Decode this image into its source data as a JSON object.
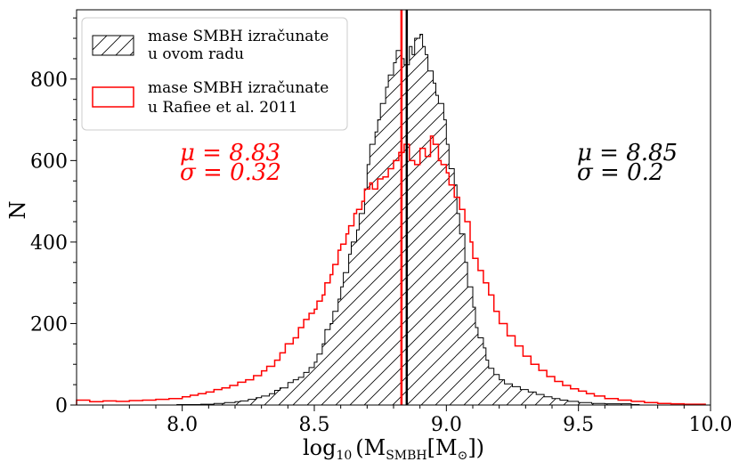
{
  "chart_data": {
    "type": "histogram",
    "xlabel": "log10 (MSMBH[M⊙])",
    "xlabel_parts": {
      "log": "log",
      "log_sub": "10",
      "paren_open": "(M",
      "m_sub": "SMBH",
      "bracket": "[M",
      "sun_sub": "⊙",
      "close": "])"
    },
    "ylabel": "N",
    "xlim": [
      7.6,
      10.0
    ],
    "ylim": [
      0,
      970
    ],
    "xticks": [
      8.0,
      8.5,
      9.0,
      9.5,
      10.0
    ],
    "xtick_labels": [
      "8.0",
      "8.5",
      "9.0",
      "9.5",
      "10.0"
    ],
    "yticks": [
      0,
      200,
      400,
      600,
      800
    ],
    "ytick_labels": [
      "0",
      "200",
      "400",
      "600",
      "800"
    ],
    "legend_position": "top-left",
    "series": [
      {
        "name": "mase SMBH izračunate u ovom radu",
        "legend_lines": [
          "mase SMBH izračunate",
          "u ovom radu"
        ],
        "style": "hatched",
        "color": "#000000",
        "mean_line": 8.85,
        "stats": {
          "mu": "μ = 8.85",
          "sigma": "σ = 0.2"
        },
        "bins": [
          [
            7.98,
            1
          ],
          [
            8.07,
            2
          ],
          [
            8.12,
            4
          ],
          [
            8.16,
            6
          ],
          [
            8.2,
            8
          ],
          [
            8.22,
            10
          ],
          [
            8.25,
            14
          ],
          [
            8.28,
            18
          ],
          [
            8.3,
            22
          ],
          [
            8.33,
            28
          ],
          [
            8.35,
            36
          ],
          [
            8.37,
            42
          ],
          [
            8.4,
            55
          ],
          [
            8.42,
            62
          ],
          [
            8.44,
            68
          ],
          [
            8.46,
            80
          ],
          [
            8.48,
            92
          ],
          [
            8.5,
            105
          ],
          [
            8.51,
            125
          ],
          [
            8.53,
            150
          ],
          [
            8.54,
            185
          ],
          [
            8.56,
            200
          ],
          [
            8.57,
            230
          ],
          [
            8.59,
            260
          ],
          [
            8.6,
            290
          ],
          [
            8.61,
            325
          ],
          [
            8.63,
            370
          ],
          [
            8.64,
            400
          ],
          [
            8.66,
            430
          ],
          [
            8.67,
            470
          ],
          [
            8.69,
            530
          ],
          [
            8.7,
            590
          ],
          [
            8.71,
            640
          ],
          [
            8.73,
            670
          ],
          [
            8.74,
            700
          ],
          [
            8.75,
            740
          ],
          [
            8.77,
            780
          ],
          [
            8.78,
            810
          ],
          [
            8.8,
            840
          ],
          [
            8.81,
            870
          ],
          [
            8.83,
            850
          ],
          [
            8.84,
            835
          ],
          [
            8.86,
            880
          ],
          [
            8.87,
            860
          ],
          [
            8.88,
            900
          ],
          [
            8.9,
            910
          ],
          [
            8.91,
            880
          ],
          [
            8.92,
            860
          ],
          [
            8.93,
            820
          ],
          [
            8.95,
            790
          ],
          [
            8.96,
            760
          ],
          [
            8.97,
            740
          ],
          [
            8.99,
            700
          ],
          [
            9.0,
            640
          ],
          [
            9.01,
            580
          ],
          [
            9.03,
            540
          ],
          [
            9.04,
            470
          ],
          [
            9.05,
            420
          ],
          [
            9.07,
            350
          ],
          [
            9.08,
            290
          ],
          [
            9.1,
            240
          ],
          [
            9.11,
            190
          ],
          [
            9.12,
            165
          ],
          [
            9.14,
            140
          ],
          [
            9.15,
            110
          ],
          [
            9.16,
            90
          ],
          [
            9.18,
            75
          ],
          [
            9.2,
            62
          ],
          [
            9.22,
            52
          ],
          [
            9.25,
            45
          ],
          [
            9.28,
            38
          ],
          [
            9.31,
            32
          ],
          [
            9.34,
            26
          ],
          [
            9.37,
            20
          ],
          [
            9.4,
            16
          ],
          [
            9.43,
            12
          ],
          [
            9.46,
            9
          ],
          [
            9.5,
            6
          ],
          [
            9.55,
            4
          ],
          [
            9.6,
            3
          ],
          [
            9.7,
            1
          ]
        ]
      },
      {
        "name": "mase SMBH izračunate u Rafiee et al. 2011",
        "legend_lines": [
          "mase SMBH izračunate",
          "u Rafiee et al. 2011"
        ],
        "style": "step",
        "color": "#ff0000",
        "mean_line": 8.83,
        "stats": {
          "mu": "μ = 8.83",
          "sigma": "σ = 0.32"
        },
        "bins": [
          [
            7.6,
            12
          ],
          [
            7.65,
            8
          ],
          [
            7.7,
            10
          ],
          [
            7.75,
            9
          ],
          [
            7.8,
            11
          ],
          [
            7.85,
            12
          ],
          [
            7.9,
            14
          ],
          [
            7.95,
            16
          ],
          [
            8.0,
            20
          ],
          [
            8.03,
            24
          ],
          [
            8.06,
            28
          ],
          [
            8.09,
            32
          ],
          [
            8.12,
            38
          ],
          [
            8.15,
            42
          ],
          [
            8.18,
            48
          ],
          [
            8.21,
            56
          ],
          [
            8.24,
            62
          ],
          [
            8.27,
            72
          ],
          [
            8.3,
            84
          ],
          [
            8.32,
            95
          ],
          [
            8.35,
            110
          ],
          [
            8.37,
            128
          ],
          [
            8.39,
            150
          ],
          [
            8.42,
            165
          ],
          [
            8.44,
            190
          ],
          [
            8.46,
            210
          ],
          [
            8.48,
            225
          ],
          [
            8.5,
            235
          ],
          [
            8.51,
            255
          ],
          [
            8.53,
            270
          ],
          [
            8.54,
            300
          ],
          [
            8.56,
            320
          ],
          [
            8.57,
            345
          ],
          [
            8.59,
            380
          ],
          [
            8.6,
            395
          ],
          [
            8.62,
            420
          ],
          [
            8.63,
            440
          ],
          [
            8.65,
            470
          ],
          [
            8.66,
            480
          ],
          [
            8.68,
            500
          ],
          [
            8.69,
            530
          ],
          [
            8.71,
            545
          ],
          [
            8.72,
            530
          ],
          [
            8.74,
            555
          ],
          [
            8.76,
            560
          ],
          [
            8.78,
            580
          ],
          [
            8.8,
            600
          ],
          [
            8.82,
            620
          ],
          [
            8.84,
            640
          ],
          [
            8.86,
            600
          ],
          [
            8.88,
            590
          ],
          [
            8.9,
            630
          ],
          [
            8.92,
            610
          ],
          [
            8.94,
            660
          ],
          [
            8.95,
            640
          ],
          [
            8.97,
            600
          ],
          [
            8.98,
            590
          ],
          [
            9.0,
            570
          ],
          [
            9.01,
            540
          ],
          [
            9.03,
            510
          ],
          [
            9.05,
            480
          ],
          [
            9.07,
            450
          ],
          [
            9.09,
            400
          ],
          [
            9.1,
            360
          ],
          [
            9.12,
            330
          ],
          [
            9.14,
            300
          ],
          [
            9.16,
            270
          ],
          [
            9.18,
            230
          ],
          [
            9.2,
            200
          ],
          [
            9.23,
            170
          ],
          [
            9.26,
            145
          ],
          [
            9.29,
            120
          ],
          [
            9.32,
            100
          ],
          [
            9.35,
            85
          ],
          [
            9.38,
            70
          ],
          [
            9.41,
            58
          ],
          [
            9.44,
            48
          ],
          [
            9.47,
            40
          ],
          [
            9.5,
            34
          ],
          [
            9.53,
            28
          ],
          [
            9.56,
            22
          ],
          [
            9.6,
            16
          ],
          [
            9.65,
            12
          ],
          [
            9.7,
            9
          ],
          [
            9.75,
            6
          ],
          [
            9.8,
            4
          ],
          [
            9.85,
            3
          ],
          [
            9.9,
            2
          ],
          [
            9.95,
            2
          ]
        ]
      }
    ]
  }
}
